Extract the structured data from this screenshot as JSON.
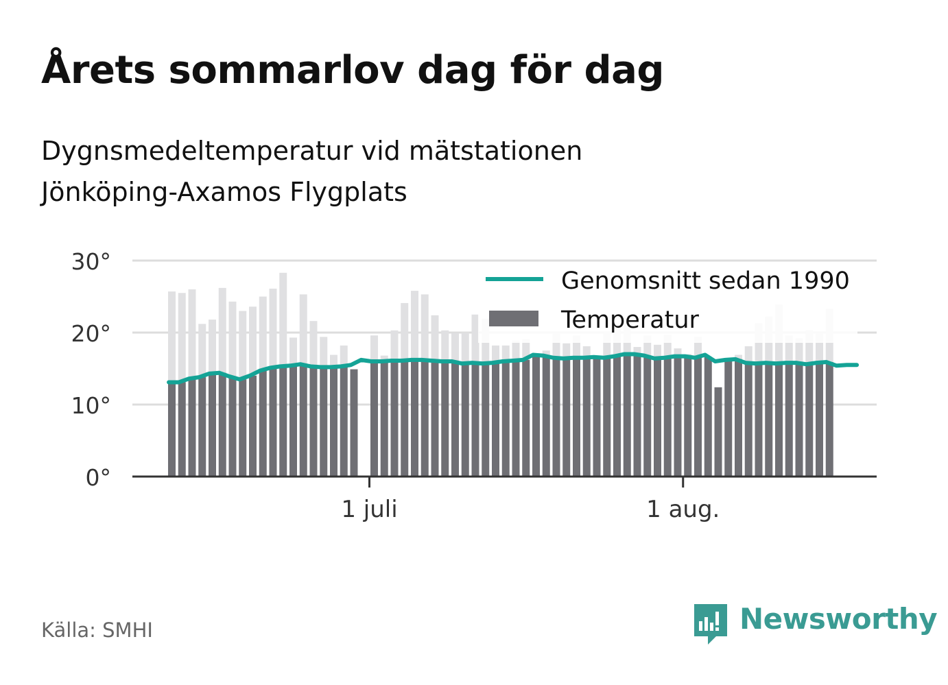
{
  "title": "Årets sommarlov dag för dag",
  "subtitle_lines": [
    "Dygnsmedeltemperatur vid mätstationen",
    "Jönköping-Axamos Flygplats"
  ],
  "source": "Källa: SMHI",
  "brand": "Newsworthy",
  "colors": {
    "bar": "#6f6f74",
    "bar_above_average": "#e0e0e2",
    "average_line": "#14a396",
    "grid": "#dddddd",
    "axis": "#333333",
    "brand": "#3a9b93"
  },
  "chart_data": {
    "type": "bar",
    "first_date": "2021-06-11",
    "x_ticks": [
      {
        "label": "1 juli",
        "date": "2021-07-01"
      },
      {
        "label": "1 aug.",
        "date": "2021-08-01"
      }
    ],
    "ylim": [
      0,
      30
    ],
    "y_ticks": [
      {
        "value": 0,
        "label": "0°"
      },
      {
        "value": 10,
        "label": "10°"
      },
      {
        "value": 20,
        "label": "20°"
      },
      {
        "value": 30,
        "label": "30°"
      }
    ],
    "grid": true,
    "legend_position": "top-right",
    "legend": {
      "line_label": "Genomsnitt sedan 1990",
      "bar_label": "Temperatur"
    },
    "series": [
      {
        "name": "Temperatur",
        "type": "bar",
        "values": [
          25.7,
          25.5,
          26.0,
          21.2,
          21.8,
          26.2,
          24.3,
          23.0,
          23.6,
          25.0,
          26.1,
          28.3,
          19.3,
          25.3,
          21.6,
          19.4,
          16.9,
          18.2,
          14.9,
          null,
          19.6,
          16.8,
          20.3,
          24.1,
          25.8,
          25.3,
          22.4,
          20.3,
          19.9,
          20.0,
          22.5,
          21.9,
          18.2,
          18.2,
          18.9,
          19.1,
          16.8,
          17.5,
          20.0,
          18.5,
          19.6,
          18.1,
          16.8,
          20.2,
          21.2,
          21.9,
          18.0,
          19.6,
          18.3,
          19.7,
          17.8,
          17.0,
          19.4,
          16.6,
          12.4,
          16.3,
          16.9,
          18.1,
          21.3,
          22.2,
          23.9,
          19.6,
          19.2,
          20.3,
          19.9,
          23.3
        ]
      },
      {
        "name": "Genomsnitt sedan 1990",
        "type": "line",
        "values": [
          13.1,
          13.1,
          13.6,
          13.8,
          14.3,
          14.4,
          13.9,
          13.5,
          14.0,
          14.7,
          15.1,
          15.3,
          15.4,
          15.6,
          15.3,
          15.2,
          15.2,
          15.3,
          15.5,
          16.2,
          16.0,
          16.0,
          16.1,
          16.1,
          16.2,
          16.2,
          16.1,
          16.0,
          16.0,
          15.7,
          15.8,
          15.7,
          15.8,
          16.0,
          16.1,
          16.2,
          16.9,
          16.8,
          16.5,
          16.4,
          16.5,
          16.5,
          16.6,
          16.5,
          16.7,
          17.0,
          17.0,
          16.8,
          16.4,
          16.5,
          16.7,
          16.7,
          16.5,
          16.9,
          16.0,
          16.2,
          16.3,
          15.8,
          15.7,
          15.8,
          15.7,
          15.8,
          15.8,
          15.6,
          15.8,
          15.9,
          15.4,
          15.5,
          15.5
        ]
      }
    ]
  }
}
